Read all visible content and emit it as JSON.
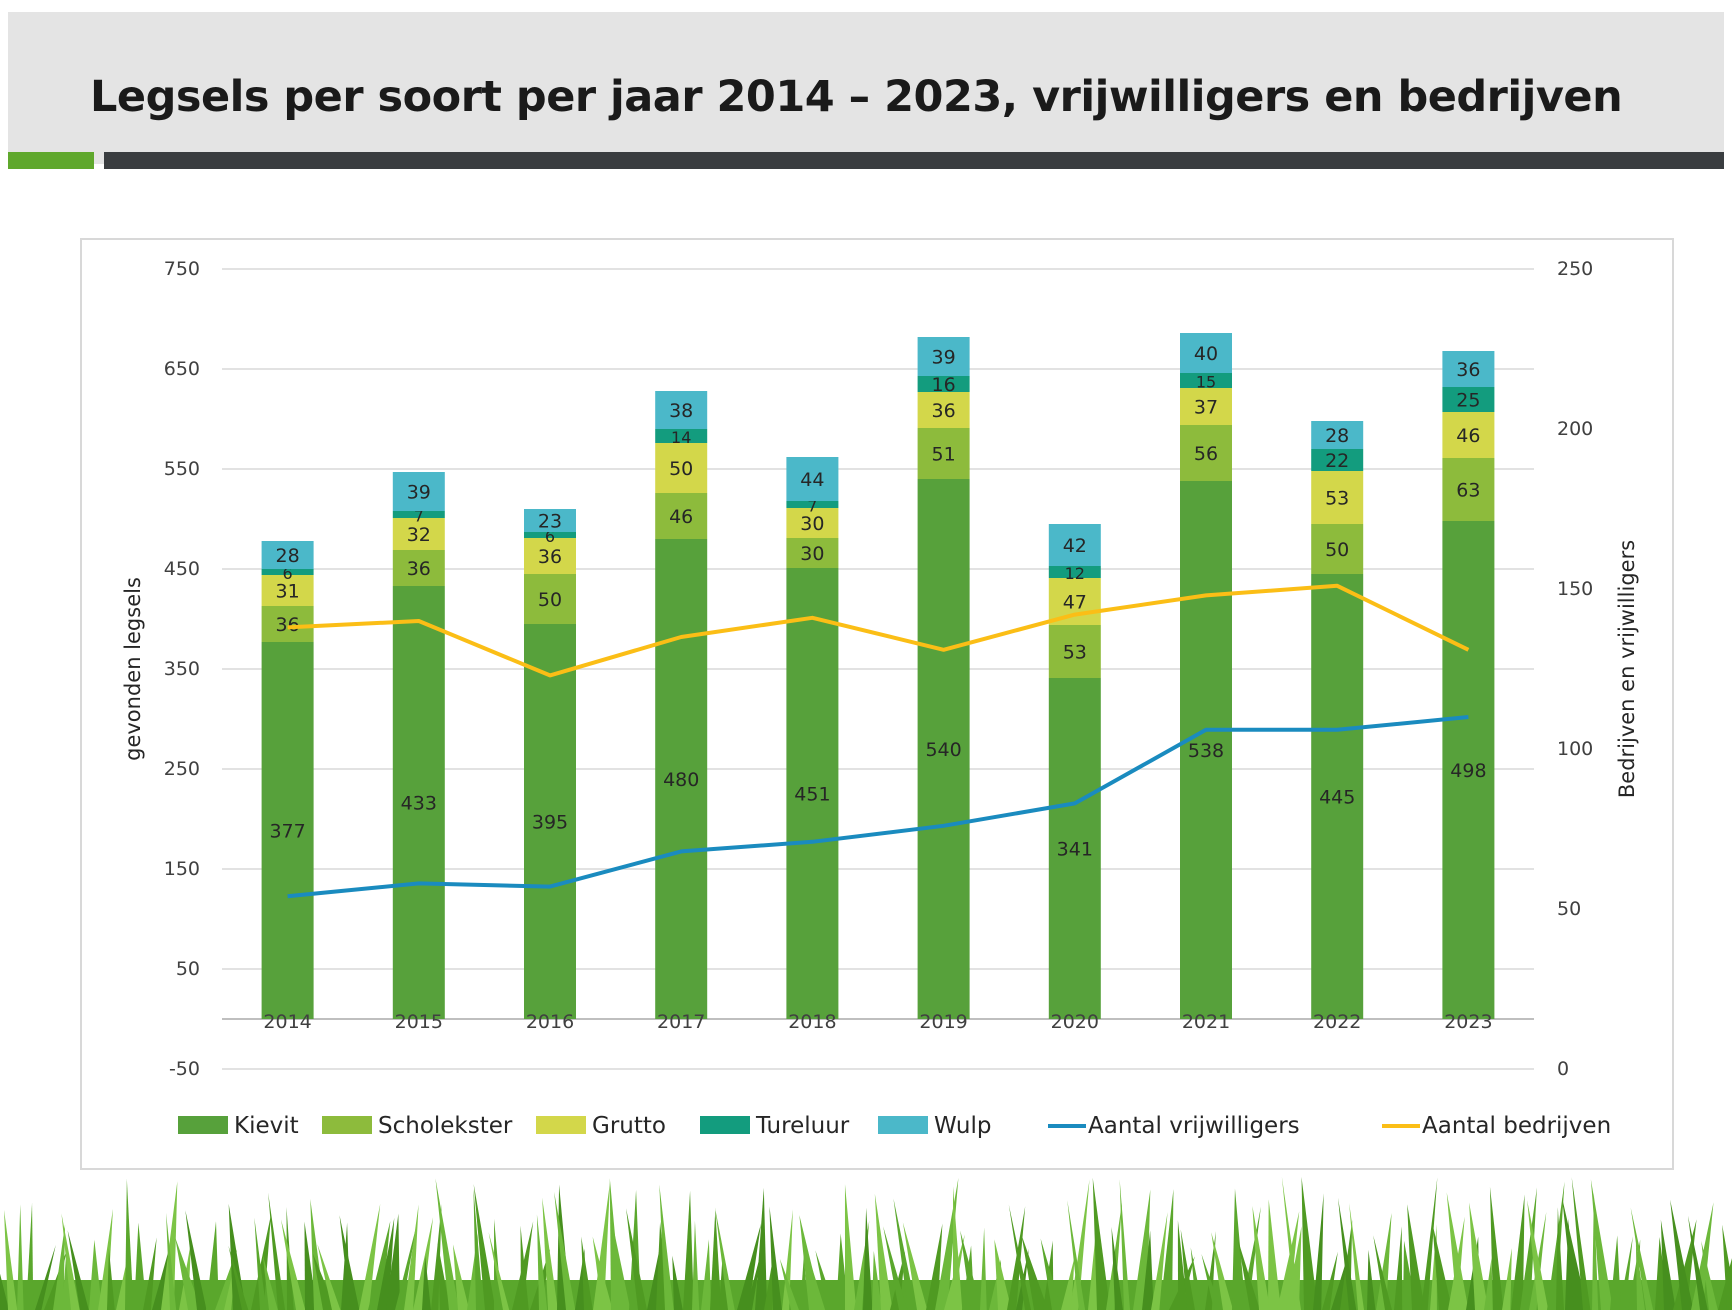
{
  "slide": {
    "title": "Legsels per soort per jaar 2014 – 2023, vrijwilligers en bedrijven"
  },
  "colors": {
    "Kievit": "#57a13b",
    "Scholekster": "#8dbb3c",
    "Grutto": "#d3d74a",
    "Tureluur": "#139c7e",
    "Wulp": "#4bb8c9",
    "Aantal vrijwilligers": "#1a8bbf",
    "Aantal bedrijven": "#fbbe16",
    "grass": "#5aa72c",
    "accent_dark": "#3a3d40"
  },
  "chart_data": {
    "type": "bar",
    "stacked": true,
    "title": "",
    "xlabel": "",
    "ylabel": "gevonden legsels",
    "y2label": "Bedrijven en vrijwilligers",
    "ylim": [
      -50,
      750
    ],
    "y2lim": [
      0,
      250
    ],
    "yticks": [
      "750",
      "650",
      "550",
      "450",
      "350",
      "250",
      "150",
      "50",
      "-50"
    ],
    "y2ticks": [
      "250",
      "200",
      "150",
      "100",
      "50",
      "0"
    ],
    "grid": true,
    "legend_position": "bottom",
    "categories": [
      "2014",
      "2015",
      "2016",
      "2017",
      "2018",
      "2019",
      "2020",
      "2021",
      "2022",
      "2023"
    ],
    "series": [
      {
        "name": "Kievit",
        "kind": "bar",
        "values": [
          377,
          433,
          395,
          480,
          451,
          540,
          341,
          538,
          445,
          498
        ]
      },
      {
        "name": "Scholekster",
        "kind": "bar",
        "values": [
          36,
          36,
          50,
          46,
          30,
          51,
          53,
          56,
          50,
          63
        ]
      },
      {
        "name": "Grutto",
        "kind": "bar",
        "values": [
          31,
          32,
          36,
          50,
          30,
          36,
          47,
          37,
          53,
          46
        ]
      },
      {
        "name": "Tureluur",
        "kind": "bar",
        "values": [
          6,
          7,
          6,
          14,
          7,
          16,
          12,
          15,
          22,
          25
        ]
      },
      {
        "name": "Wulp",
        "kind": "bar",
        "values": [
          28,
          39,
          23,
          38,
          44,
          39,
          42,
          40,
          28,
          36
        ]
      },
      {
        "name": "Aantal vrijwilligers",
        "kind": "line",
        "axis": "y2",
        "values": [
          54,
          58,
          57,
          68,
          71,
          76,
          83,
          106,
          106,
          110
        ]
      },
      {
        "name": "Aantal bedrijven",
        "kind": "line",
        "axis": "y2",
        "values": [
          138,
          140,
          123,
          135,
          141,
          131,
          142,
          148,
          151,
          131
        ]
      }
    ]
  }
}
